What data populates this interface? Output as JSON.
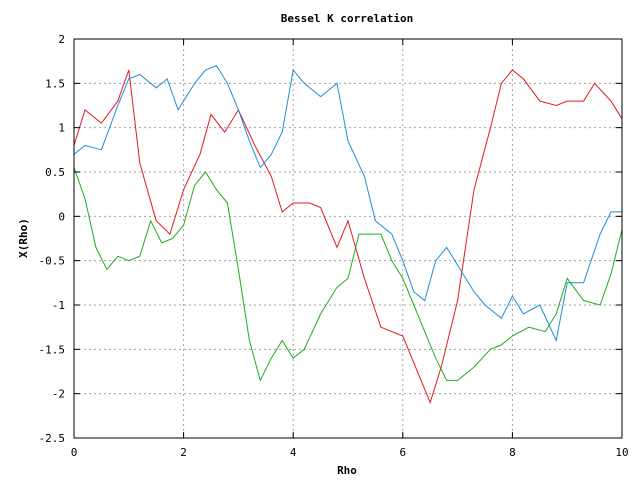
{
  "chart_data": {
    "type": "line",
    "title": "Bessel K correlation",
    "xlabel": "Rho",
    "ylabel": "X(Rho)",
    "xlim": [
      0,
      10
    ],
    "ylim": [
      -2.5,
      2
    ],
    "grid": true,
    "legend": "none",
    "xticks": [
      "0",
      "2",
      "4",
      "6",
      "8",
      "10"
    ],
    "yticks": [
      "2",
      "1.5",
      "1",
      "0.5",
      "0",
      "-0.5",
      "-1",
      "-1.5",
      "-2",
      "-2.5"
    ],
    "series": [
      {
        "color": "#e41a1c",
        "x": [
          0,
          0.2,
          0.5,
          0.8,
          1.0,
          1.2,
          1.5,
          1.75,
          2.0,
          2.3,
          2.5,
          2.75,
          3.0,
          3.3,
          3.6,
          3.8,
          4.0,
          4.3,
          4.5,
          4.8,
          5.0,
          5.3,
          5.6,
          6.0,
          6.3,
          6.5,
          6.7,
          7.0,
          7.3,
          7.6,
          7.8,
          8.0,
          8.2,
          8.5,
          8.8,
          9.0,
          9.3,
          9.5,
          9.8,
          10.0
        ],
        "y": [
          0.8,
          1.2,
          1.05,
          1.3,
          1.65,
          0.6,
          -0.05,
          -0.2,
          0.3,
          0.7,
          1.15,
          0.95,
          1.2,
          0.8,
          0.45,
          0.05,
          0.15,
          0.15,
          0.1,
          -0.35,
          -0.05,
          -0.7,
          -1.25,
          -1.35,
          -1.8,
          -2.1,
          -1.7,
          -0.95,
          0.3,
          1.0,
          1.5,
          1.65,
          1.55,
          1.3,
          1.25,
          1.3,
          1.3,
          1.5,
          1.3,
          1.1
        ]
      },
      {
        "color": "#1f8fd6",
        "x": [
          0,
          0.2,
          0.5,
          0.8,
          1.0,
          1.2,
          1.5,
          1.7,
          1.9,
          2.2,
          2.4,
          2.6,
          2.8,
          3.0,
          3.2,
          3.4,
          3.6,
          3.8,
          4.0,
          4.2,
          4.5,
          4.8,
          5.0,
          5.3,
          5.5,
          5.8,
          6.0,
          6.2,
          6.4,
          6.6,
          6.8,
          7.0,
          7.3,
          7.5,
          7.8,
          8.0,
          8.2,
          8.5,
          8.8,
          9.0,
          9.3,
          9.6,
          9.8,
          10.0
        ],
        "y": [
          0.7,
          0.8,
          0.75,
          1.25,
          1.55,
          1.6,
          1.45,
          1.55,
          1.2,
          1.5,
          1.65,
          1.7,
          1.5,
          1.2,
          0.85,
          0.55,
          0.7,
          0.95,
          1.65,
          1.5,
          1.35,
          1.5,
          0.85,
          0.45,
          -0.05,
          -0.2,
          -0.5,
          -0.85,
          -0.95,
          -0.5,
          -0.35,
          -0.55,
          -0.85,
          -1.0,
          -1.15,
          -0.9,
          -1.1,
          -1.0,
          -1.4,
          -0.75,
          -0.75,
          -0.2,
          0.05,
          0.05
        ]
      },
      {
        "color": "#22aa22",
        "x": [
          0,
          0.2,
          0.4,
          0.6,
          0.8,
          1.0,
          1.2,
          1.4,
          1.6,
          1.8,
          2.0,
          2.2,
          2.4,
          2.6,
          2.8,
          3.0,
          3.2,
          3.4,
          3.6,
          3.8,
          4.0,
          4.2,
          4.5,
          4.8,
          5.0,
          5.2,
          5.4,
          5.6,
          5.8,
          6.0,
          6.2,
          6.4,
          6.6,
          6.8,
          7.0,
          7.3,
          7.6,
          7.8,
          8.0,
          8.3,
          8.6,
          8.8,
          9.0,
          9.3,
          9.6,
          9.8,
          10.0
        ],
        "y": [
          0.55,
          0.2,
          -0.35,
          -0.6,
          -0.45,
          -0.5,
          -0.45,
          -0.05,
          -0.3,
          -0.25,
          -0.1,
          0.35,
          0.5,
          0.3,
          0.15,
          -0.6,
          -1.4,
          -1.85,
          -1.6,
          -1.4,
          -1.6,
          -1.5,
          -1.1,
          -0.8,
          -0.7,
          -0.2,
          -0.2,
          -0.2,
          -0.5,
          -0.7,
          -1.0,
          -1.3,
          -1.6,
          -1.85,
          -1.85,
          -1.7,
          -1.5,
          -1.45,
          -1.35,
          -1.25,
          -1.3,
          -1.1,
          -0.7,
          -0.95,
          -1.0,
          -0.65,
          -0.15
        ]
      }
    ]
  }
}
